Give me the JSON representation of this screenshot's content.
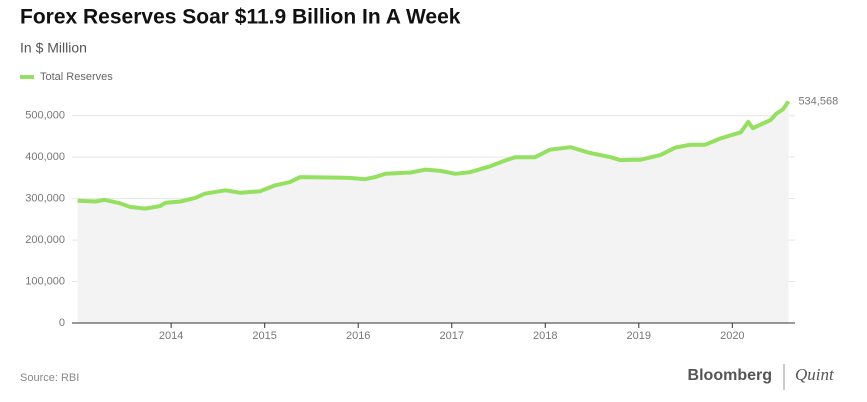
{
  "chart_data": {
    "type": "line",
    "title": "Forex Reserves Soar $11.9 Billion In A Week",
    "subtitle": "In $ Million",
    "source": "Source: RBI",
    "brand": "Bloomberg",
    "brand2": "Quint",
    "x": [
      2013.0,
      2013.19,
      2013.29,
      2013.45,
      2013.56,
      2013.72,
      2013.88,
      2013.94,
      2014.1,
      2014.26,
      2014.36,
      2014.58,
      2014.74,
      2014.95,
      2015.11,
      2015.27,
      2015.38,
      2015.7,
      2015.91,
      2016.07,
      2016.18,
      2016.29,
      2016.56,
      2016.72,
      2016.88,
      2017.04,
      2017.2,
      2017.41,
      2017.57,
      2017.68,
      2017.89,
      2018.05,
      2018.27,
      2018.48,
      2018.7,
      2018.8,
      2019.02,
      2019.23,
      2019.39,
      2019.55,
      2019.71,
      2019.87,
      2020.09,
      2020.17,
      2020.22,
      2020.41,
      2020.47,
      2020.54,
      2020.6
    ],
    "series": [
      {
        "name": "Total Reserves",
        "color": "#95e060",
        "values": [
          295000,
          293000,
          297000,
          289000,
          280000,
          276000,
          282000,
          290000,
          293000,
          302000,
          312000,
          320000,
          314000,
          318000,
          332000,
          340000,
          352000,
          351000,
          350000,
          347000,
          352000,
          360000,
          363000,
          370000,
          367000,
          360000,
          364000,
          378000,
          392000,
          400000,
          400000,
          418000,
          424000,
          410000,
          400000,
          393000,
          394000,
          405000,
          423000,
          430000,
          430000,
          445000,
          460000,
          485000,
          470000,
          490000,
          505000,
          515000,
          534568
        ],
        "value_labels": [
          null,
          null,
          null,
          null,
          null,
          null,
          null,
          null,
          null,
          null,
          null,
          null,
          null,
          null,
          null,
          null,
          null,
          null,
          null,
          null,
          null,
          null,
          null,
          null,
          null,
          null,
          null,
          null,
          null,
          null,
          null,
          null,
          null,
          null,
          null,
          null,
          null,
          null,
          null,
          null,
          null,
          null,
          null,
          null,
          null,
          null,
          null,
          null,
          "534,568"
        ]
      }
    ],
    "xlim": [
      2012.94,
      2020.67
    ],
    "xticks": [
      2014,
      2015,
      2016,
      2017,
      2018,
      2019,
      2020
    ],
    "ylim": [
      0,
      550000
    ],
    "yticks": [
      0,
      {
        "value": 100000,
        "label": "100,000"
      },
      {
        "value": 200000,
        "label": "200,000"
      },
      {
        "value": 300000,
        "label": "300,000"
      },
      {
        "value": 400000,
        "label": "400,000"
      },
      {
        "value": 500000,
        "label": "500,000"
      }
    ],
    "grid": true
  }
}
